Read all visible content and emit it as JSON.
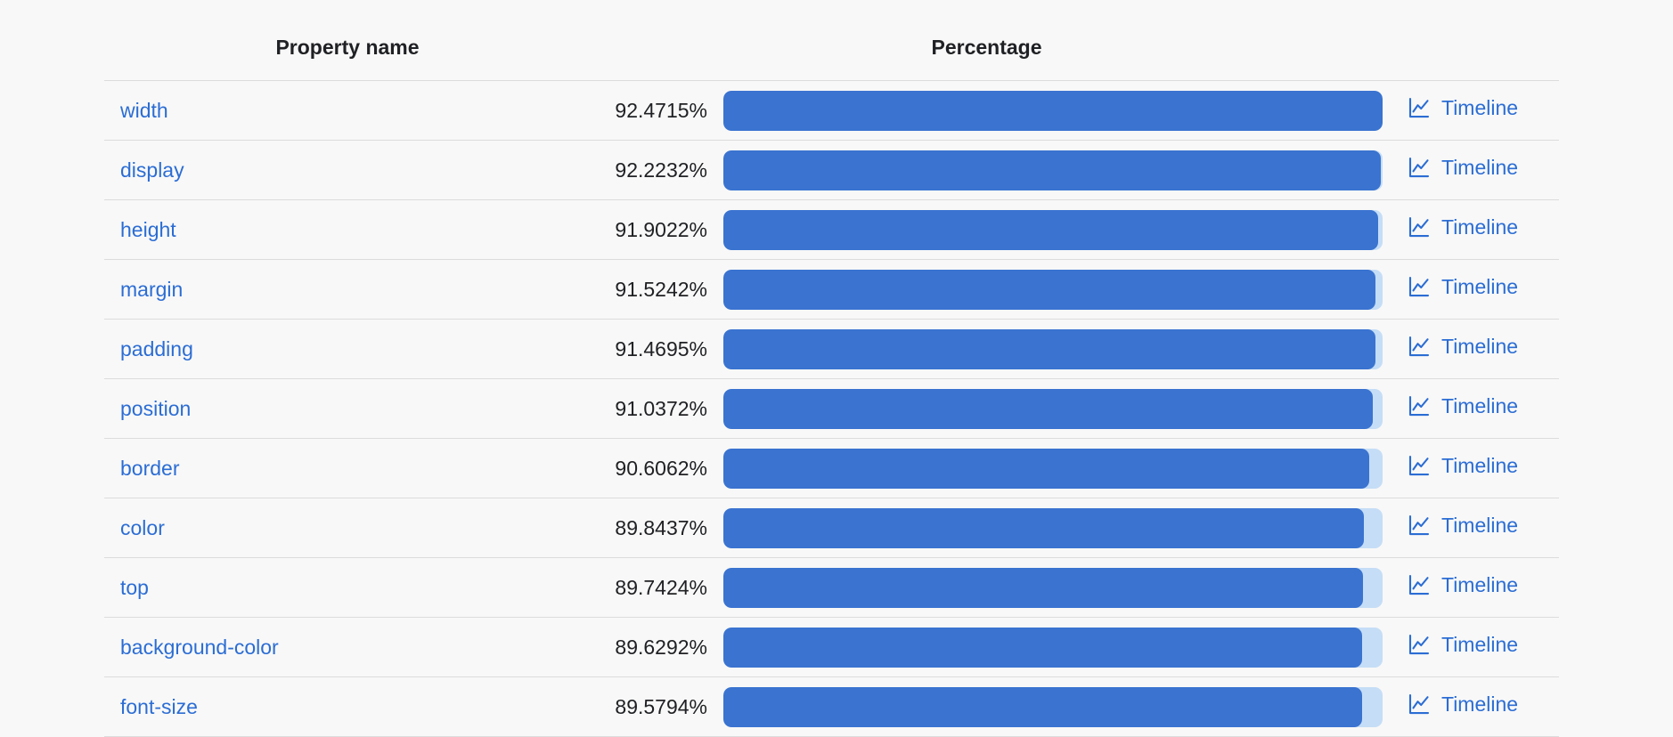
{
  "table": {
    "headers": {
      "property": "Property name",
      "percentage": "Percentage"
    },
    "max_percentage": 92.4715,
    "rows": [
      {
        "property": "width",
        "percentage": "92.4715%",
        "value": 92.4715,
        "timeline_label": "Timeline"
      },
      {
        "property": "display",
        "percentage": "92.2232%",
        "value": 92.2232,
        "timeline_label": "Timeline"
      },
      {
        "property": "height",
        "percentage": "91.9022%",
        "value": 91.9022,
        "timeline_label": "Timeline"
      },
      {
        "property": "margin",
        "percentage": "91.5242%",
        "value": 91.5242,
        "timeline_label": "Timeline"
      },
      {
        "property": "padding",
        "percentage": "91.4695%",
        "value": 91.4695,
        "timeline_label": "Timeline"
      },
      {
        "property": "position",
        "percentage": "91.0372%",
        "value": 91.0372,
        "timeline_label": "Timeline"
      },
      {
        "property": "border",
        "percentage": "90.6062%",
        "value": 90.6062,
        "timeline_label": "Timeline"
      },
      {
        "property": "color",
        "percentage": "89.8437%",
        "value": 89.8437,
        "timeline_label": "Timeline"
      },
      {
        "property": "top",
        "percentage": "89.7424%",
        "value": 89.7424,
        "timeline_label": "Timeline"
      },
      {
        "property": "background-color",
        "percentage": "89.6292%",
        "value": 89.6292,
        "timeline_label": "Timeline"
      },
      {
        "property": "font-size",
        "percentage": "89.5794%",
        "value": 89.5794,
        "timeline_label": "Timeline"
      }
    ]
  },
  "colors": {
    "bg": "#f8f8f8",
    "divider": "#dcdcdc",
    "text": "#202124",
    "link": "#2b6dd4",
    "bar_fill": "#3a73d0",
    "bar_track": "#c5ddf6"
  },
  "chart_data": {
    "type": "bar",
    "categories": [
      "width",
      "display",
      "height",
      "margin",
      "padding",
      "position",
      "border",
      "color",
      "top",
      "background-color",
      "font-size"
    ],
    "values": [
      92.4715,
      92.2232,
      91.9022,
      91.5242,
      91.4695,
      91.0372,
      90.6062,
      89.8437,
      89.7424,
      89.6292,
      89.5794
    ],
    "title": "",
    "xlabel": "Property name",
    "ylabel": "Percentage",
    "orientation": "horizontal",
    "bar_scale_max": 92.4715,
    "legend": "off",
    "grid": "off"
  }
}
